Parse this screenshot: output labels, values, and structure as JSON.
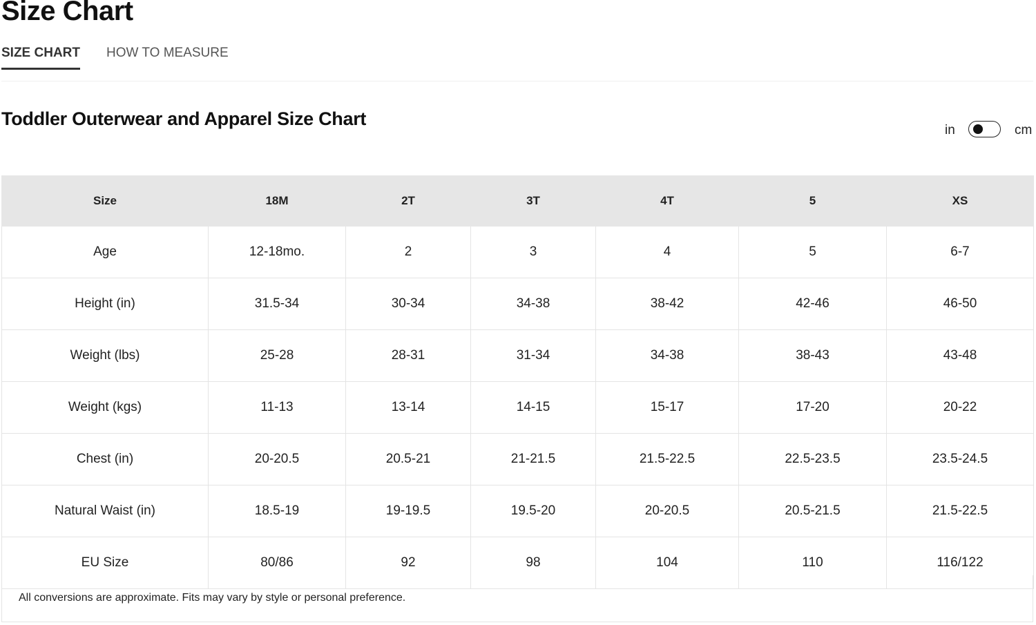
{
  "page": {
    "title": "Size Chart"
  },
  "tabs": [
    {
      "label": "SIZE CHART",
      "active": true
    },
    {
      "label": "HOW TO MEASURE",
      "active": false
    }
  ],
  "chart": {
    "title": "Toddler Outerwear and Apparel Size Chart",
    "unit_toggle": {
      "left_label": "in",
      "right_label": "cm",
      "selected": "in"
    },
    "headers": [
      "Size",
      "18M",
      "2T",
      "3T",
      "4T",
      "5",
      "XS"
    ],
    "rows": [
      [
        "Age",
        "12-18mo.",
        "2",
        "3",
        "4",
        "5",
        "6-7"
      ],
      [
        "Height (in)",
        "31.5-34",
        "30-34",
        "34-38",
        "38-42",
        "42-46",
        "46-50"
      ],
      [
        "Weight (lbs)",
        "25-28",
        "28-31",
        "31-34",
        "34-38",
        "38-43",
        "43-48"
      ],
      [
        "Weight (kgs)",
        "11-13",
        "13-14",
        "14-15",
        "15-17",
        "17-20",
        "20-22"
      ],
      [
        "Chest (in)",
        "20-20.5",
        "20.5-21",
        "21-21.5",
        "21.5-22.5",
        "22.5-23.5",
        "23.5-24.5"
      ],
      [
        "Natural Waist (in)",
        "18.5-19",
        "19-19.5",
        "19.5-20",
        "20-20.5",
        "20.5-21.5",
        "21.5-22.5"
      ],
      [
        "EU Size",
        "80/86",
        "92",
        "98",
        "104",
        "110",
        "116/122"
      ]
    ],
    "footnote": "All conversions are approximate. Fits may vary by style or personal preference."
  }
}
